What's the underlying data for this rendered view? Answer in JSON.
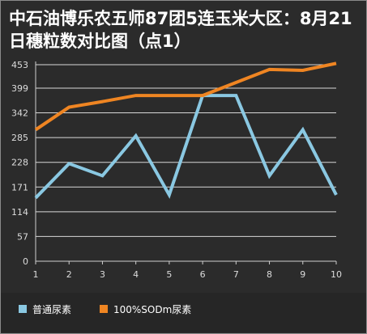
{
  "chart_data": {
    "type": "line",
    "title": "中石油博乐农五师87团5连玉米大区：8月21日穗粒数对比图（点1）",
    "x": [
      1,
      2,
      3,
      4,
      5,
      6,
      7,
      8,
      9,
      10
    ],
    "y_ticks": [
      0,
      57,
      114,
      171,
      228,
      285,
      342,
      399,
      453
    ],
    "ylim": [
      0,
      453
    ],
    "xlim": [
      1,
      10
    ],
    "grid": true,
    "legend_position": "bottom",
    "series": [
      {
        "name": "普通尿素",
        "color": "#8ac8e2",
        "values": [
          146,
          225,
          197,
          289,
          153,
          382,
          382,
          197,
          303,
          153
        ]
      },
      {
        "name": "100%SODm尿素",
        "color": "#ef8522",
        "values": [
          303,
          355,
          368,
          382,
          382,
          382,
          412,
          442,
          440,
          456
        ]
      }
    ]
  },
  "legend": [
    {
      "label": "普通尿素",
      "color": "#8ac8e2"
    },
    {
      "label": "100%SODm尿素",
      "color": "#ef8522"
    }
  ]
}
